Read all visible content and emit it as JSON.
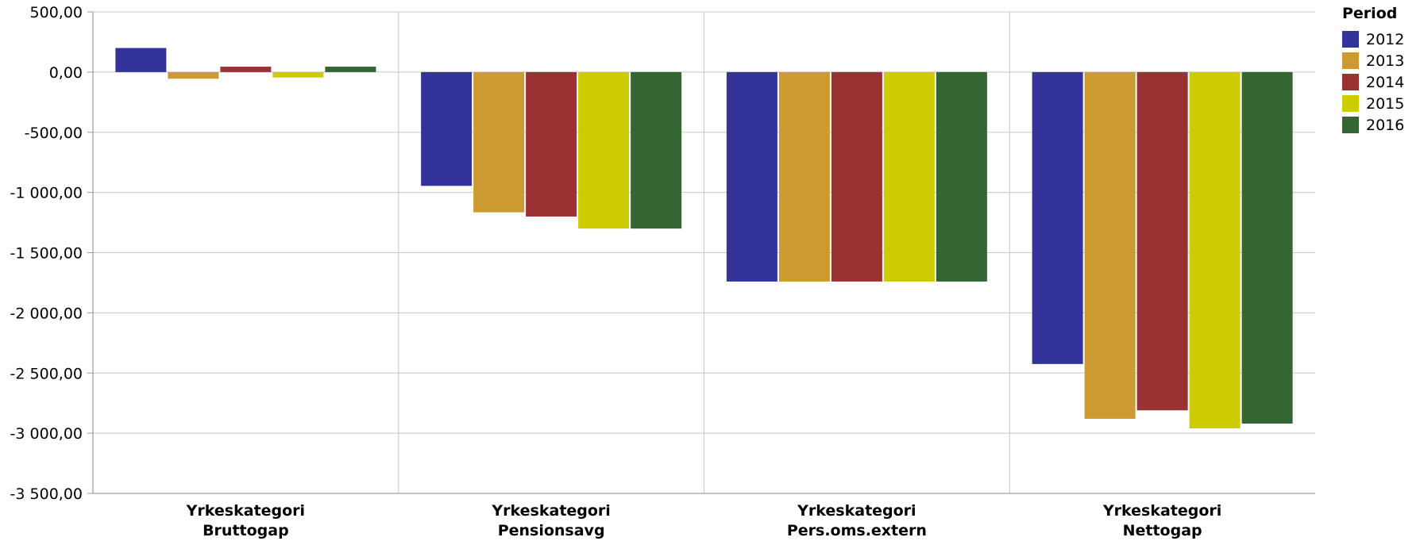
{
  "chart_data": {
    "type": "bar",
    "categories": [
      {
        "line1": "Yrkeskategori",
        "line2": "Bruttogap"
      },
      {
        "line1": "Yrkeskategori",
        "line2": "Pensionsavg"
      },
      {
        "line1": "Yrkeskategori",
        "line2": "Pers.oms.extern"
      },
      {
        "line1": "Yrkeskategori",
        "line2": "Nettogap"
      }
    ],
    "legend_title": "Period",
    "series": [
      {
        "name": "2012",
        "color": "#33339a",
        "values": [
          200,
          -945,
          -1740,
          -2425
        ]
      },
      {
        "name": "2013",
        "color": "#cc9933",
        "values": [
          -55,
          -1165,
          -1740,
          -2880
        ]
      },
      {
        "name": "2014",
        "color": "#993333",
        "values": [
          45,
          -1200,
          -1740,
          -2810
        ]
      },
      {
        "name": "2015",
        "color": "#cccc00",
        "values": [
          -45,
          -1300,
          -1740,
          -2960
        ]
      },
      {
        "name": "2016",
        "color": "#336633",
        "values": [
          45,
          -1300,
          -1740,
          -2920
        ]
      }
    ],
    "ylim": [
      -3500,
      500
    ],
    "yticks": [
      500,
      0,
      -500,
      -1000,
      -1500,
      -2000,
      -2500,
      -3000,
      -3500
    ],
    "ytick_labels": [
      "500,00",
      "0,00",
      "-500,00",
      "-1 000,00",
      "-1 500,00",
      "-2 000,00",
      "-2 500,00",
      "-3 000,00",
      "-3 500,00"
    ],
    "grid": true,
    "legend_position": "right"
  }
}
